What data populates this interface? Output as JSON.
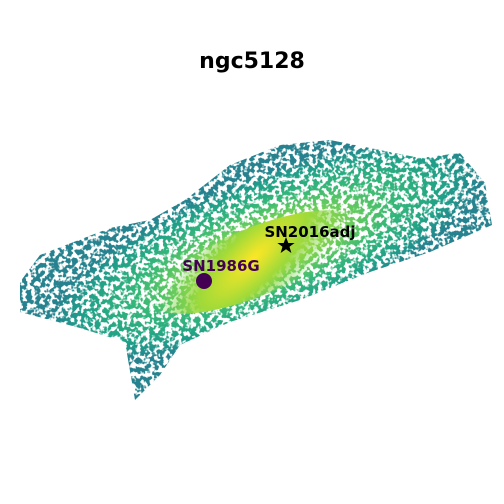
{
  "title": "ngc5128",
  "markers": [
    {
      "label": "SN2016adj"
    },
    {
      "label": "SN1986G"
    }
  ]
}
